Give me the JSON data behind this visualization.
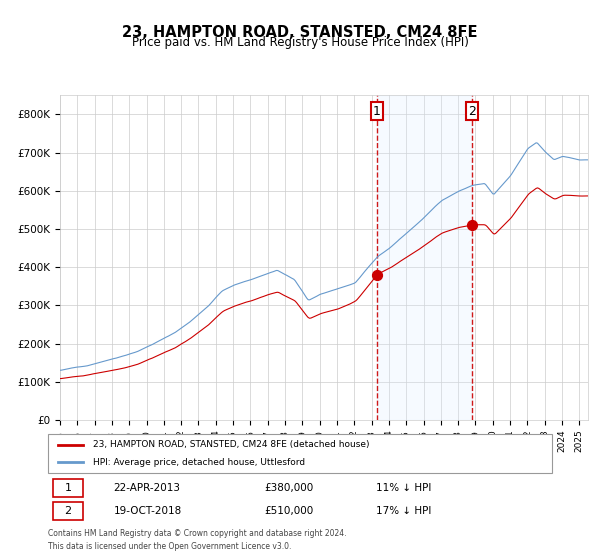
{
  "title": "23, HAMPTON ROAD, STANSTED, CM24 8FE",
  "subtitle": "Price paid vs. HM Land Registry's House Price Index (HPI)",
  "legend_red": "23, HAMPTON ROAD, STANSTED, CM24 8FE (detached house)",
  "legend_blue": "HPI: Average price, detached house, Uttlesford",
  "annotation1_date": "22-APR-2013",
  "annotation1_price": "£380,000",
  "annotation1_hpi": "11% ↓ HPI",
  "annotation2_date": "19-OCT-2018",
  "annotation2_price": "£510,000",
  "annotation2_hpi": "17% ↓ HPI",
  "footnote": "Contains HM Land Registry data © Crown copyright and database right 2024.\nThis data is licensed under the Open Government Licence v3.0.",
  "red_color": "#cc0000",
  "blue_color": "#6699cc",
  "shading_color": "#ddeeff",
  "grid_color": "#cccccc",
  "background_color": "#ffffff",
  "point1_x": 2013.31,
  "point1_y": 380000,
  "point2_x": 2018.8,
  "point2_y": 510000,
  "ylim": [
    0,
    850000
  ],
  "xlim_start": 1995.0,
  "xlim_end": 2025.5
}
